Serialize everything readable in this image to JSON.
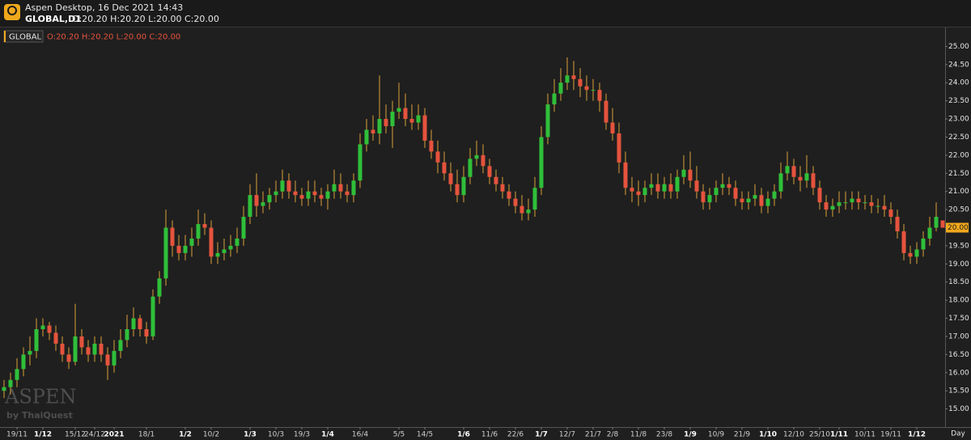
{
  "window": {
    "title": "Aspen Desktop, 16 Dec 2021 14:43",
    "symbol": "GLOBAL,D1",
    "ohlc": "O:20.20 H:20.20 L:20.00 C:20.00"
  },
  "chart_data": {
    "type": "candlestick",
    "legend_symbol": "GLOBAL",
    "legend_ohlc": "O:20.20 H:20.20 L:20.00 C:20.00",
    "watermark": "ASPEN",
    "watermark_sub": "by ThaiQuest",
    "x_unit": "Day",
    "up_color": "#2fbf3a",
    "down_color": "#e5533d",
    "wick_color": "#d9a23a",
    "tag_color": "#f0a81c",
    "ylim": [
      14.5,
      25.5
    ],
    "yticks": [
      {
        "value": 15,
        "label": "15.00"
      },
      {
        "value": 15.5,
        "label": "15.50"
      },
      {
        "value": 16,
        "label": "16.00"
      },
      {
        "value": 16.5,
        "label": "16.50"
      },
      {
        "value": 17,
        "label": "17.00"
      },
      {
        "value": 17.5,
        "label": "17.50"
      },
      {
        "value": 18,
        "label": "18.00"
      },
      {
        "value": 18.5,
        "label": "18.50"
      },
      {
        "value": 19,
        "label": "19.00"
      },
      {
        "value": 19.5,
        "label": "19.50"
      },
      {
        "value": 20,
        "label": "20.00"
      },
      {
        "value": 20.5,
        "label": "20.50"
      },
      {
        "value": 21,
        "label": "21.00"
      },
      {
        "value": 21.5,
        "label": "21.50"
      },
      {
        "value": 22,
        "label": "22.00"
      },
      {
        "value": 22.5,
        "label": "22.50"
      },
      {
        "value": 23,
        "label": "23.00"
      },
      {
        "value": 23.5,
        "label": "23.50"
      },
      {
        "value": 24,
        "label": "24.00"
      },
      {
        "value": 24.5,
        "label": "24.50"
      },
      {
        "value": 25,
        "label": "25.00"
      }
    ],
    "last_price": {
      "value": 20,
      "label": "20.00"
    },
    "categories": [
      null,
      null,
      "19/11",
      null,
      null,
      null,
      "1/12",
      null,
      null,
      null,
      null,
      "15/12",
      null,
      null,
      "24/12",
      null,
      null,
      "2021",
      null,
      null,
      null,
      null,
      "18/1",
      null,
      null,
      null,
      null,
      null,
      "1/2",
      null,
      null,
      null,
      "10/2",
      null,
      null,
      null,
      null,
      null,
      "1/3",
      null,
      null,
      null,
      "10/3",
      null,
      null,
      null,
      "19/3",
      null,
      null,
      null,
      "1/4",
      null,
      null,
      null,
      null,
      "16/4",
      null,
      null,
      null,
      null,
      null,
      "5/5",
      null,
      null,
      null,
      "14/5",
      null,
      null,
      null,
      null,
      null,
      "1/6",
      null,
      null,
      null,
      "11/6",
      null,
      null,
      null,
      "22/6",
      null,
      null,
      null,
      "1/7",
      null,
      null,
      null,
      "12/7",
      null,
      null,
      null,
      "21/7",
      null,
      null,
      "2/8",
      null,
      null,
      null,
      "11/8",
      null,
      null,
      null,
      "23/8",
      null,
      null,
      null,
      "1/9",
      null,
      null,
      null,
      "10/9",
      null,
      null,
      null,
      "21/9",
      null,
      null,
      null,
      "1/10",
      null,
      null,
      null,
      "12/10",
      null,
      null,
      null,
      "25/10",
      null,
      null,
      "1/11",
      null,
      null,
      null,
      "10/11",
      null,
      null,
      null,
      "19/11",
      null,
      null,
      null,
      "1/12",
      null,
      null,
      null,
      null
    ],
    "open": [
      15.5,
      15.6,
      15.8,
      16.1,
      16.5,
      16.6,
      17.2,
      17.3,
      17.1,
      16.8,
      16.5,
      16.3,
      17.0,
      16.7,
      16.5,
      16.8,
      16.5,
      16.2,
      16.6,
      16.9,
      17.2,
      17.5,
      17.2,
      17.0,
      18.1,
      18.6,
      20.0,
      19.5,
      19.3,
      19.5,
      19.7,
      20.1,
      20.0,
      19.2,
      19.3,
      19.4,
      19.5,
      19.7,
      20.3,
      20.9,
      20.6,
      20.7,
      20.9,
      21.0,
      21.3,
      21.0,
      20.9,
      20.8,
      21.0,
      20.9,
      20.8,
      21.0,
      21.2,
      21.0,
      20.9,
      21.3,
      22.3,
      22.7,
      22.6,
      23.0,
      22.8,
      23.2,
      23.3,
      23.0,
      22.9,
      23.1,
      22.4,
      22.1,
      21.8,
      21.5,
      21.2,
      20.9,
      21.4,
      21.9,
      22.0,
      21.7,
      21.4,
      21.2,
      21.0,
      20.8,
      20.6,
      20.4,
      20.5,
      21.1,
      22.5,
      23.4,
      23.7,
      24.0,
      24.2,
      24.1,
      23.9,
      23.8,
      23.8,
      23.5,
      22.9,
      22.6,
      21.8,
      21.1,
      21.0,
      20.9,
      21.1,
      21.2,
      21.0,
      21.2,
      21.0,
      21.4,
      21.6,
      21.3,
      21.0,
      20.7,
      20.9,
      21.1,
      21.2,
      21.1,
      20.8,
      20.7,
      20.8,
      20.9,
      20.6,
      20.8,
      21.0,
      21.5,
      21.7,
      21.4,
      21.3,
      21.5,
      21.1,
      20.7,
      20.5,
      20.6,
      20.7,
      20.7,
      20.8,
      20.7,
      20.7,
      20.6,
      20.6,
      20.5,
      20.3,
      19.9,
      19.3,
      19.2,
      19.4,
      19.7,
      20.0,
      20.2
    ],
    "high": [
      15.8,
      16.0,
      16.4,
      16.7,
      17.0,
      17.5,
      17.5,
      17.4,
      17.3,
      17.0,
      16.7,
      17.9,
      17.2,
      16.9,
      17.0,
      17.0,
      16.7,
      16.9,
      17.2,
      17.6,
      17.8,
      17.6,
      17.4,
      18.3,
      18.8,
      20.5,
      20.2,
      19.8,
      19.8,
      20.0,
      20.5,
      20.4,
      20.2,
      19.6,
      19.7,
      19.8,
      20.0,
      20.6,
      21.2,
      21.5,
      21.0,
      21.1,
      21.3,
      21.6,
      21.5,
      21.3,
      21.1,
      21.3,
      21.3,
      21.1,
      21.2,
      21.6,
      21.5,
      21.2,
      21.5,
      22.6,
      23.0,
      23.1,
      24.2,
      23.4,
      23.5,
      24.0,
      23.7,
      23.4,
      23.4,
      23.3,
      22.7,
      22.4,
      22.1,
      21.8,
      21.6,
      21.7,
      22.2,
      22.4,
      22.3,
      21.9,
      21.6,
      21.4,
      21.2,
      21.0,
      20.9,
      20.8,
      21.4,
      22.8,
      23.7,
      24.1,
      24.4,
      24.7,
      24.6,
      24.4,
      24.2,
      24.1,
      24.0,
      23.7,
      23.3,
      22.9,
      22.1,
      21.4,
      21.3,
      21.3,
      21.5,
      21.5,
      21.4,
      21.5,
      21.6,
      22.0,
      22.1,
      21.7,
      21.2,
      21.1,
      21.3,
      21.5,
      21.4,
      21.3,
      21.0,
      21.0,
      21.2,
      21.1,
      21.0,
      21.2,
      21.8,
      22.1,
      21.9,
      21.7,
      22.0,
      21.7,
      21.3,
      20.9,
      20.8,
      21.0,
      21.0,
      21.0,
      21.0,
      20.9,
      20.9,
      20.8,
      20.9,
      20.7,
      20.5,
      20.1,
      19.5,
      19.6,
      19.9,
      20.3,
      20.7,
      20.2
    ],
    "low": [
      15.3,
      15.4,
      15.6,
      15.9,
      16.2,
      16.4,
      17.0,
      16.9,
      16.6,
      16.3,
      16.1,
      16.2,
      16.5,
      16.3,
      16.3,
      16.3,
      15.8,
      16.0,
      16.4,
      16.7,
      17.0,
      17.0,
      16.8,
      16.9,
      17.9,
      18.4,
      19.2,
      19.1,
      19.1,
      19.2,
      19.5,
      19.8,
      19.0,
      19.0,
      19.1,
      19.2,
      19.3,
      19.5,
      20.1,
      20.3,
      20.4,
      20.5,
      20.7,
      20.8,
      20.8,
      20.7,
      20.6,
      20.6,
      20.7,
      20.6,
      20.5,
      20.8,
      20.8,
      20.7,
      20.7,
      21.1,
      22.1,
      22.4,
      22.3,
      22.6,
      22.2,
      23.0,
      22.8,
      22.7,
      22.7,
      22.2,
      21.9,
      21.5,
      21.3,
      21.0,
      20.7,
      20.7,
      21.2,
      21.7,
      21.5,
      21.2,
      21.0,
      20.8,
      20.6,
      20.4,
      20.2,
      20.2,
      20.3,
      20.9,
      22.3,
      23.2,
      23.5,
      23.8,
      23.8,
      23.6,
      23.5,
      23.5,
      23.2,
      22.7,
      22.4,
      21.5,
      20.9,
      20.7,
      20.6,
      20.7,
      20.9,
      20.8,
      20.8,
      20.8,
      20.8,
      21.2,
      21.1,
      20.8,
      20.5,
      20.5,
      20.7,
      20.9,
      20.9,
      20.6,
      20.5,
      20.5,
      20.6,
      20.4,
      20.4,
      20.6,
      20.8,
      21.3,
      21.2,
      21.0,
      21.1,
      20.9,
      20.5,
      20.3,
      20.3,
      20.4,
      20.5,
      20.5,
      20.5,
      20.5,
      20.4,
      20.4,
      20.3,
      20.1,
      19.7,
      19.1,
      19.0,
      19.0,
      19.2,
      19.5,
      19.9,
      20.0
    ],
    "close": [
      15.6,
      15.8,
      16.1,
      16.5,
      16.6,
      17.2,
      17.3,
      17.1,
      16.8,
      16.5,
      16.3,
      17.0,
      16.7,
      16.5,
      16.8,
      16.5,
      16.2,
      16.6,
      16.9,
      17.2,
      17.5,
      17.2,
      17.0,
      18.1,
      18.6,
      20.0,
      19.5,
      19.3,
      19.5,
      19.7,
      20.1,
      20.0,
      19.2,
      19.3,
      19.4,
      19.5,
      19.7,
      20.3,
      20.9,
      20.6,
      20.7,
      20.9,
      21.0,
      21.3,
      21.0,
      20.9,
      20.8,
      21.0,
      20.9,
      20.8,
      21.0,
      21.2,
      21.0,
      20.9,
      21.3,
      22.3,
      22.7,
      22.6,
      23.0,
      22.8,
      23.2,
      23.3,
      23.0,
      22.9,
      23.1,
      22.4,
      22.1,
      21.8,
      21.5,
      21.2,
      20.9,
      21.4,
      21.9,
      22.0,
      21.7,
      21.4,
      21.2,
      21.0,
      20.8,
      20.6,
      20.4,
      20.5,
      21.1,
      22.5,
      23.4,
      23.7,
      24.0,
      24.2,
      24.1,
      23.9,
      23.8,
      23.8,
      23.5,
      22.9,
      22.6,
      21.8,
      21.1,
      21.0,
      20.9,
      21.1,
      21.2,
      21.0,
      21.2,
      21.0,
      21.4,
      21.6,
      21.3,
      21.0,
      20.7,
      20.9,
      21.1,
      21.2,
      21.1,
      20.8,
      20.7,
      20.8,
      20.9,
      20.6,
      20.8,
      21.0,
      21.5,
      21.7,
      21.4,
      21.3,
      21.5,
      21.1,
      20.7,
      20.5,
      20.6,
      20.7,
      20.7,
      20.8,
      20.7,
      20.7,
      20.6,
      20.6,
      20.5,
      20.3,
      19.9,
      19.3,
      19.2,
      19.4,
      19.7,
      20.0,
      20.3,
      20.0
    ]
  }
}
